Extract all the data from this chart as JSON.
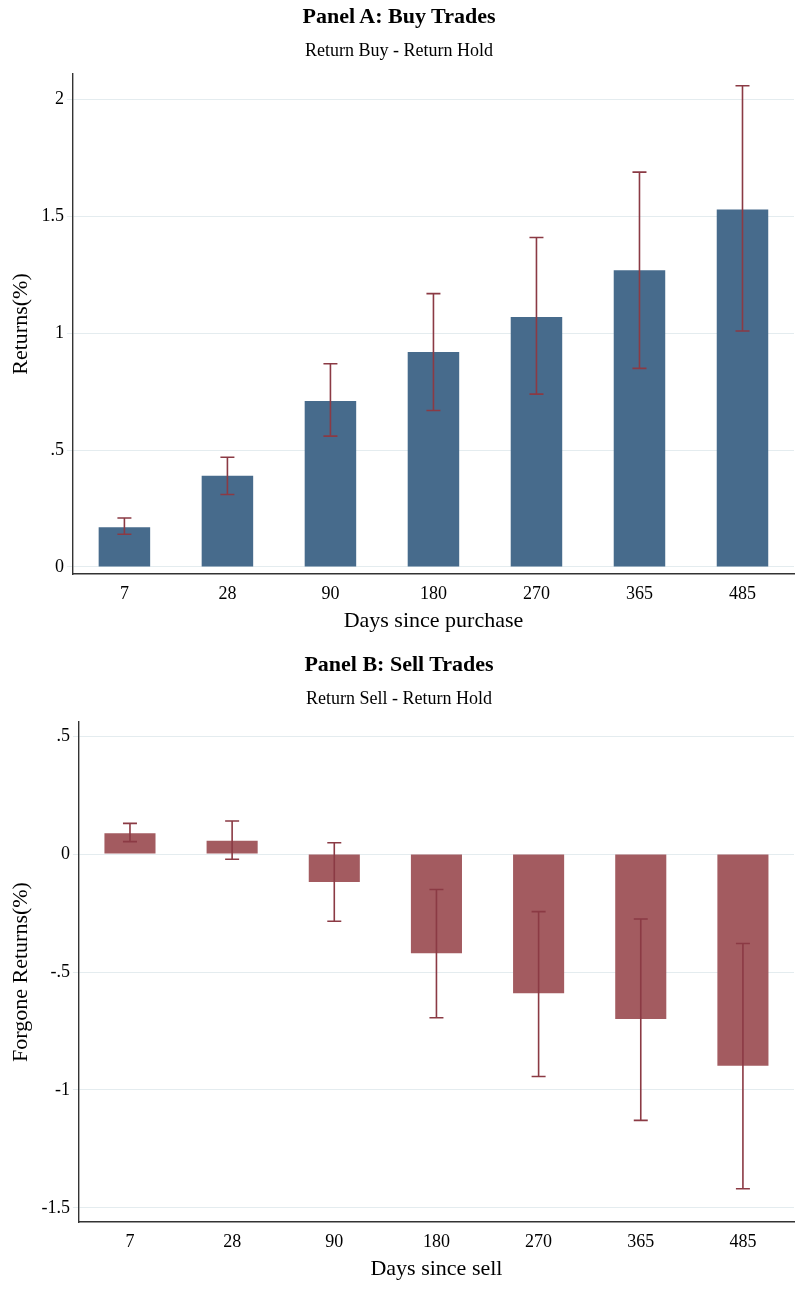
{
  "chart_data": [
    {
      "type": "bar",
      "title": "Panel A: Buy Trades",
      "subtitle": "Return Buy - Return Hold",
      "xlabel": "Days since purchase",
      "ylabel": "Returns(%)",
      "categories": [
        "7",
        "28",
        "90",
        "180",
        "270",
        "365",
        "485"
      ],
      "values": [
        0.17,
        0.39,
        0.71,
        0.92,
        1.07,
        1.27,
        1.53
      ],
      "errors": [
        [
          0.14,
          0.21
        ],
        [
          0.31,
          0.47
        ],
        [
          0.56,
          0.87
        ],
        [
          0.67,
          1.17
        ],
        [
          0.74,
          1.41
        ],
        [
          0.85,
          1.69
        ],
        [
          1.01,
          2.06
        ]
      ],
      "color": "#476b8c",
      "ylim": [
        -0.03,
        2.11
      ],
      "yticks": [
        0,
        {
          "value": 0.5,
          "label": ".5"
        },
        1,
        1.5,
        2
      ],
      "grid": "y",
      "legend": false
    },
    {
      "type": "bar",
      "title": "Panel B: Sell Trades",
      "subtitle": "Return Sell - Return Hold",
      "xlabel": "Days since sell",
      "ylabel": "Forgone Returns(%)",
      "categories": [
        "7",
        "28",
        "90",
        "180",
        "270",
        "365",
        "485"
      ],
      "values": [
        0.088,
        0.057,
        -0.118,
        -0.42,
        -0.59,
        -0.699,
        -0.897
      ],
      "errors": [
        [
          0.053,
          0.13
        ],
        [
          -0.022,
          0.14
        ],
        [
          -0.285,
          0.048
        ],
        [
          -0.694,
          -0.15
        ],
        [
          -0.943,
          -0.244
        ],
        [
          -1.129,
          -0.275
        ],
        [
          -1.419,
          -0.379
        ]
      ],
      "color": "#a35b60",
      "ylim": [
        -1.56,
        0.56
      ],
      "yticks": [
        {
          "value": -1.5,
          "label": "-1.5"
        },
        -1,
        {
          "value": -0.5,
          "label": "-.5"
        },
        0,
        {
          "value": 0.5,
          "label": ".5"
        }
      ],
      "grid": "y",
      "legend": false
    }
  ]
}
